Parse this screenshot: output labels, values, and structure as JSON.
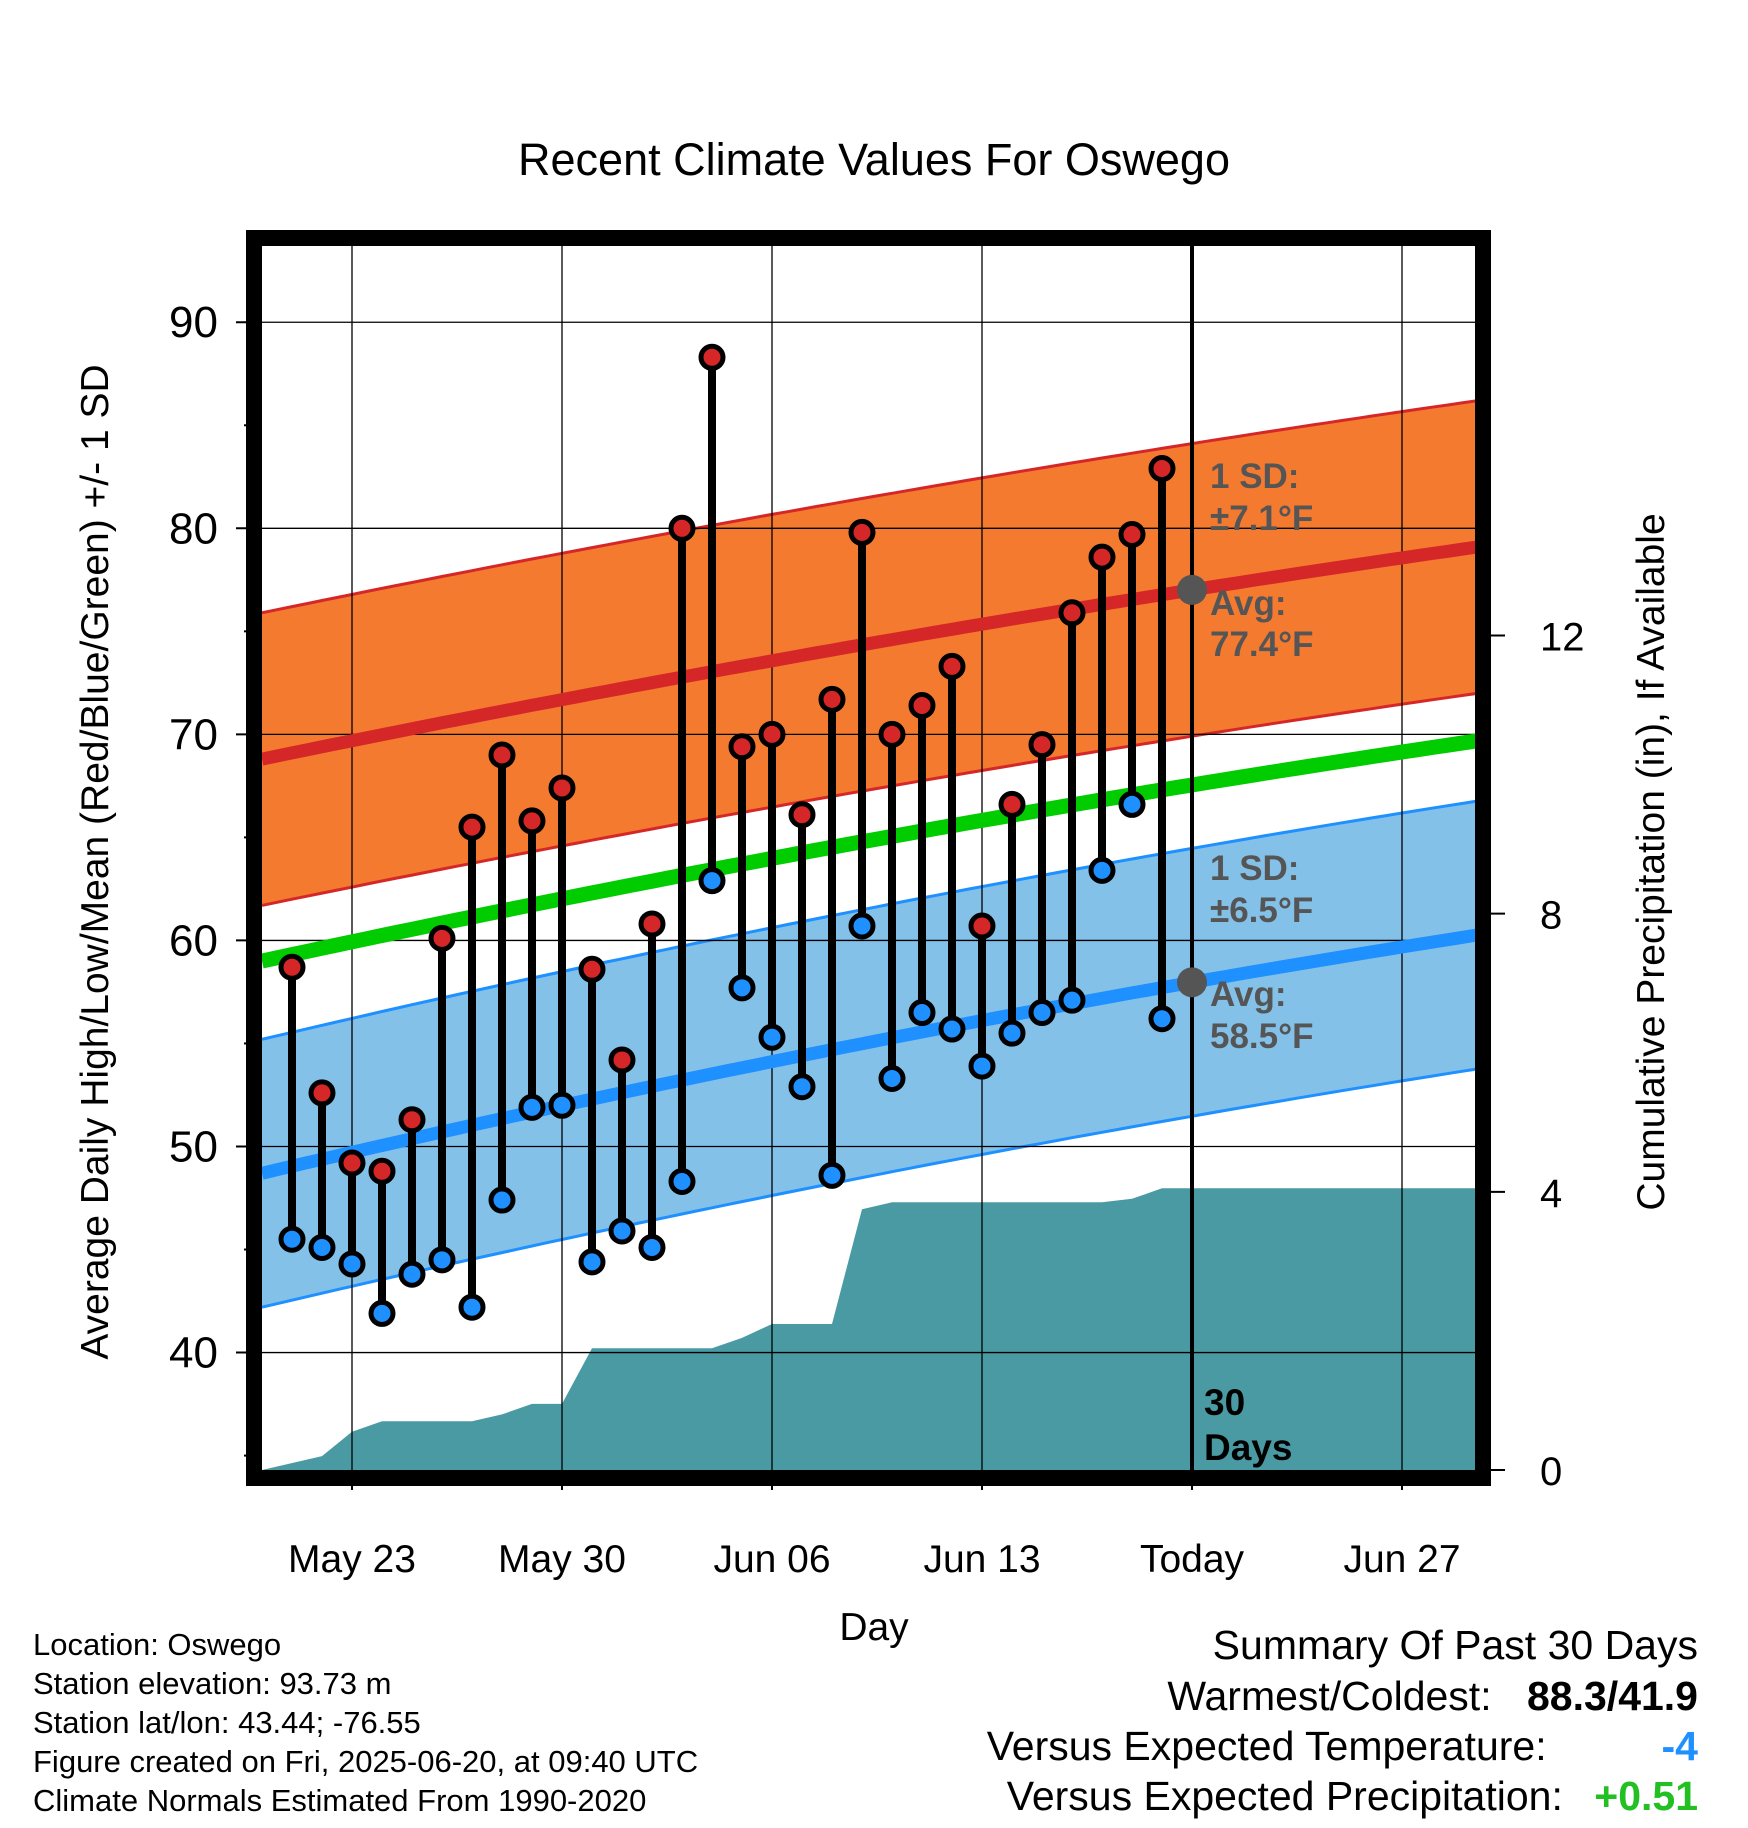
{
  "chart_data": {
    "type": "line",
    "title": "Recent Climate Values For Oswego",
    "xlabel": "Day",
    "ylabel": "Average Daily High/Low/Mean (Red/Blue/Green) +/- 1 SD",
    "y2label": "Cumulative Precipitation (in), If Available",
    "ylim": [
      34.3,
      93.7
    ],
    "y2lim": [
      0,
      17.6
    ],
    "y_ticks": [
      "90",
      "80",
      "70",
      "60",
      "50",
      "40"
    ],
    "y2_ticks": [
      "12",
      "8",
      "4",
      "0"
    ],
    "x_ticks": [
      "May 23",
      "May 30",
      "Jun 06",
      "Jun 13",
      "Today",
      "Jun 27"
    ],
    "grid": true,
    "days": [
      "May 21",
      "May 22",
      "May 23",
      "May 24",
      "May 25",
      "May 26",
      "May 27",
      "May 28",
      "May 29",
      "May 30",
      "May 31",
      "Jun 01",
      "Jun 02",
      "Jun 03",
      "Jun 04",
      "Jun 05",
      "Jun 06",
      "Jun 07",
      "Jun 08",
      "Jun 09",
      "Jun 10",
      "Jun 11",
      "Jun 12",
      "Jun 13",
      "Jun 14",
      "Jun 15",
      "Jun 16",
      "Jun 17",
      "Jun 18",
      "Jun 19"
    ],
    "series": [
      {
        "name": "High",
        "color": "#d62728",
        "values": [
          58.7,
          52.6,
          49.2,
          48.8,
          51.3,
          60.1,
          65.5,
          69.0,
          65.8,
          67.4,
          58.6,
          54.2,
          60.8,
          80.0,
          88.3,
          69.4,
          70.0,
          66.1,
          71.7,
          79.8,
          70.0,
          71.4,
          73.3,
          60.7,
          66.6,
          69.5,
          75.9,
          78.6,
          79.7,
          82.9
        ]
      },
      {
        "name": "Low",
        "color": "#1e90ff",
        "values": [
          45.5,
          45.1,
          44.3,
          41.9,
          43.8,
          44.5,
          42.2,
          47.4,
          51.9,
          52.0,
          44.4,
          45.9,
          45.1,
          48.3,
          62.9,
          57.7,
          55.3,
          52.9,
          48.6,
          60.7,
          53.3,
          56.5,
          55.7,
          53.9,
          55.5,
          56.5,
          57.1,
          63.4,
          66.6,
          56.2
        ]
      }
    ],
    "normals": {
      "span": [
        "May 20",
        "Jul 01"
      ],
      "high_avg": [
        68.8,
        79.4
      ],
      "high_sd": 7.1,
      "low_avg": [
        48.7,
        60.6
      ],
      "low_sd": 6.5,
      "mean_avg": [
        59.0,
        70.0
      ]
    },
    "precip": {
      "days": [
        "May 20",
        "May 22",
        "May 23",
        "May 24",
        "May 25",
        "May 26",
        "May 27",
        "May 28",
        "May 29",
        "May 30",
        "May 31",
        "Jun 01",
        "Jun 02",
        "Jun 03",
        "Jun 04",
        "Jun 05",
        "Jun 06",
        "Jun 07",
        "Jun 08",
        "Jun 09",
        "Jun 10",
        "Jun 11",
        "Jun 12",
        "Jun 13",
        "Jun 14",
        "Jun 15",
        "Jun 16",
        "Jun 17",
        "Jun 18",
        "Jun 19",
        "Jun 20",
        "Jul 01"
      ],
      "values": [
        0,
        0.2,
        0.55,
        0.7,
        0.7,
        0.7,
        0.7,
        0.8,
        0.95,
        0.95,
        1.75,
        1.75,
        1.75,
        1.75,
        1.75,
        1.9,
        2.1,
        2.1,
        2.1,
        3.75,
        3.85,
        3.85,
        3.85,
        3.85,
        3.85,
        3.85,
        3.85,
        3.85,
        3.9,
        4.05,
        4.05,
        4.05
      ]
    },
    "annotations": {
      "high_sd_label": "1 SD:",
      "high_sd_value": "±7.1°F",
      "high_avg_label": "Avg:",
      "high_avg_value": "77.4°F",
      "low_sd_label": "1 SD:",
      "low_sd_value": "±6.5°F",
      "low_avg_label": "Avg:",
      "low_avg_value": "58.5°F",
      "today_marker": "Jun 20",
      "window_line1": "30",
      "window_line2": "Days"
    }
  },
  "info": {
    "location": "Location: Oswego",
    "elevation": "Station elevation: 93.73 m",
    "latlon": "Station lat/lon: 43.44; -76.55",
    "created": "Figure created on Fri, 2025-06-20, at 09:40 UTC",
    "normals": "Climate Normals Estimated From 1990-2020"
  },
  "summary": {
    "title": "Summary Of Past 30 Days",
    "warm_label": "Warmest/Coldest:",
    "warm_value": "88.3/41.9",
    "temp_label": "Versus Expected Temperature:",
    "temp_value": "-4",
    "temp_color": "#1e90ff",
    "precip_label": "Versus Expected Precipitation:",
    "precip_value": "+0.51",
    "precip_color": "#22c022"
  },
  "colors": {
    "high_band": "#f47a30",
    "high_edge": "#d62728",
    "low_band": "#84c1e8",
    "low_edge": "#1e90ff",
    "mean": "#00cc00",
    "precip": "#4a9aa3",
    "avg_dot": "#555555"
  }
}
